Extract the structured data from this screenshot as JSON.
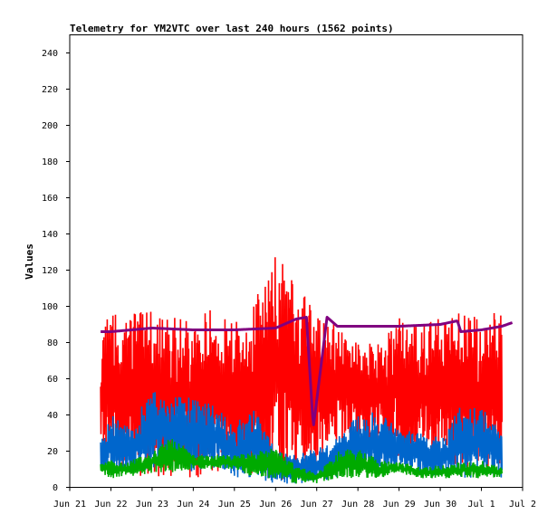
{
  "chart_data": {
    "type": "line",
    "title": "Telemetry for YM2VTC over last 240 hours (1562 points)",
    "xlabel": "",
    "ylabel": "Values",
    "ylim": [
      0,
      250
    ],
    "y_ticks": [
      "0",
      "20",
      "40",
      "60",
      "80",
      "100",
      "120",
      "140",
      "160",
      "180",
      "200",
      "220",
      "240"
    ],
    "x_ticks": [
      "Jun 21",
      "Jun 22",
      "Jun 23",
      "Jun 24",
      "Jun 25",
      "Jun 26",
      "Jun 27",
      "Jun 28",
      "Jun 29",
      "Jun 30",
      "Jul 1",
      "Jul 2"
    ],
    "x_domain_days": [
      "Jun 21",
      "Jul 2"
    ],
    "grid": false,
    "legend": "none",
    "series": [
      {
        "color": "#ff0000",
        "style": "dense oscillating trace",
        "x": [
          "Jun 21 18:00",
          "Jun 22 00:00",
          "Jun 22 12:00",
          "Jun 23 00:00",
          "Jun 23 12:00",
          "Jun 24 00:00",
          "Jun 24 12:00",
          "Jun 25 00:00",
          "Jun 25 12:00",
          "Jun 26 00:00",
          "Jun 26 12:00",
          "Jun 27 00:00",
          "Jun 27 12:00",
          "Jun 28 00:00",
          "Jun 28 12:00",
          "Jun 29 00:00",
          "Jun 29 12:00",
          "Jun 30 00:00",
          "Jun 30 12:00",
          "Jul 1 00:00",
          "Jul 1 12:00"
        ],
        "low": [
          5,
          8,
          6,
          4,
          6,
          5,
          7,
          5,
          5,
          2,
          4,
          10,
          25,
          22,
          18,
          15,
          18,
          16,
          10,
          8,
          6
        ],
        "high": [
          97,
          95,
          100,
          98,
          95,
          92,
          100,
          95,
          105,
          130,
          115,
          95,
          90,
          80,
          82,
          95,
          88,
          95,
          100,
          92,
          103
        ]
      },
      {
        "color": "#800080",
        "style": "thick line",
        "x": [
          "Jun 21 18:00",
          "Jun 22 00:00",
          "Jun 23 00:00",
          "Jun 24 00:00",
          "Jun 25 00:00",
          "Jun 26 00:00",
          "Jun 26 12:00",
          "Jun 26 18:00",
          "Jun 26 22:00",
          "Jun 27 06:00",
          "Jun 27 12:00",
          "Jun 28 00:00",
          "Jun 29 00:00",
          "Jun 30 00:00",
          "Jun 30 10:00",
          "Jun 30 12:00",
          "Jul 1 00:00",
          "Jul 1 12:00",
          "Jul 1 18:00"
        ],
        "values": [
          86,
          86,
          88,
          87,
          87,
          88,
          93,
          94,
          33,
          94,
          89,
          89,
          89,
          90,
          92,
          86,
          87,
          89,
          91
        ]
      },
      {
        "color": "#0066cc",
        "style": "dense oscillating trace",
        "x": [
          "Jun 21 18:00",
          "Jun 22 00:00",
          "Jun 22 12:00",
          "Jun 23 00:00",
          "Jun 23 12:00",
          "Jun 24 00:00",
          "Jun 24 12:00",
          "Jun 25 00:00",
          "Jun 25 12:00",
          "Jun 26 00:00",
          "Jun 26 12:00",
          "Jun 27 00:00",
          "Jun 27 12:00",
          "Jun 28 00:00",
          "Jun 28 12:00",
          "Jun 29 00:00",
          "Jun 29 12:00",
          "Jun 30 00:00",
          "Jun 30 12:00",
          "Jul 1 00:00",
          "Jul 1 12:00"
        ],
        "low": [
          8,
          10,
          8,
          10,
          12,
          8,
          10,
          5,
          5,
          2,
          2,
          2,
          5,
          10,
          8,
          10,
          8,
          5,
          5,
          5,
          5
        ],
        "high": [
          25,
          40,
          35,
          55,
          50,
          50,
          45,
          35,
          45,
          20,
          18,
          22,
          28,
          40,
          42,
          32,
          30,
          28,
          45,
          45,
          30
        ]
      },
      {
        "color": "#00aa00",
        "style": "dense oscillating trace",
        "x": [
          "Jun 21 18:00",
          "Jun 22 00:00",
          "Jun 22 12:00",
          "Jun 23 00:00",
          "Jun 23 12:00",
          "Jun 24 00:00",
          "Jun 24 12:00",
          "Jun 25 00:00",
          "Jun 25 12:00",
          "Jun 26 00:00",
          "Jun 26 12:00",
          "Jun 27 00:00",
          "Jun 27 12:00",
          "Jun 28 00:00",
          "Jun 28 12:00",
          "Jun 29 00:00",
          "Jun 29 12:00",
          "Jun 30 00:00",
          "Jun 30 12:00",
          "Jul 1 00:00",
          "Jul 1 12:00"
        ],
        "low": [
          8,
          5,
          6,
          8,
          8,
          10,
          10,
          10,
          5,
          5,
          2,
          2,
          5,
          5,
          5,
          8,
          5,
          5,
          5,
          5,
          5
        ],
        "high": [
          15,
          15,
          15,
          20,
          28,
          18,
          18,
          18,
          20,
          22,
          12,
          8,
          20,
          22,
          15,
          14,
          12,
          12,
          14,
          15,
          12
        ]
      }
    ]
  }
}
